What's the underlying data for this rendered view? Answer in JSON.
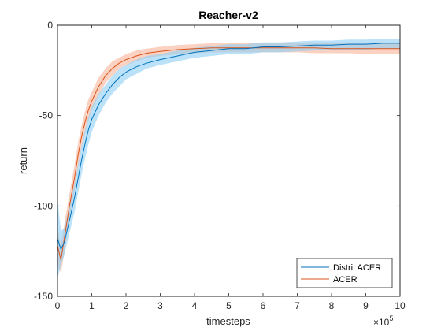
{
  "chart_data": {
    "type": "line",
    "title": "Reacher-v2",
    "xlabel": "timesteps",
    "ylabel": "return",
    "x_multiplier_label": "×10",
    "x_multiplier_exponent": "5",
    "xlim": [
      0,
      10
    ],
    "ylim": [
      -150,
      0
    ],
    "xticks": [
      0,
      1,
      2,
      3,
      4,
      5,
      6,
      7,
      8,
      9,
      10
    ],
    "yticks": [
      0,
      -50,
      -100,
      -150
    ],
    "grid": false,
    "legend_position": "bottom-right",
    "series": [
      {
        "name": "Distri. ACER",
        "color": "#0072BD",
        "band_color": "#8ECFF5",
        "x": [
          0,
          0.1,
          0.2,
          0.35,
          0.5,
          0.6,
          0.7,
          0.8,
          0.9,
          1.0,
          1.2,
          1.4,
          1.6,
          1.8,
          2.0,
          2.3,
          2.6,
          3.0,
          3.5,
          4.0,
          4.5,
          5.0,
          5.5,
          6.0,
          6.5,
          7.0,
          7.5,
          8.0,
          8.5,
          9.0,
          9.5,
          10.0
        ],
        "mean": [
          -118,
          -124,
          -120,
          -108,
          -95,
          -85,
          -75,
          -66,
          -58,
          -52,
          -44,
          -38,
          -33,
          -29,
          -26,
          -23,
          -21,
          -19,
          -17,
          -15,
          -14,
          -13,
          -13,
          -12,
          -12,
          -11.5,
          -11,
          -11,
          -10.5,
          -10.5,
          -10,
          -10
        ],
        "lower": [
          -140,
          -133,
          -127,
          -115,
          -103,
          -93,
          -83,
          -74,
          -66,
          -59,
          -50,
          -43,
          -38,
          -34,
          -30,
          -27,
          -24,
          -22,
          -20,
          -18,
          -17,
          -16,
          -16,
          -15,
          -15,
          -14.5,
          -14,
          -14,
          -13.5,
          -13.5,
          -13,
          -13
        ],
        "upper": [
          -96,
          -114,
          -112,
          -100,
          -87,
          -77,
          -67,
          -58,
          -51,
          -45,
          -38,
          -33,
          -28,
          -24,
          -22,
          -19,
          -17,
          -16,
          -14,
          -12.5,
          -11.5,
          -10.5,
          -10.5,
          -9.5,
          -9.5,
          -9,
          -8.5,
          -8.5,
          -8,
          -8,
          -7.5,
          -7.5
        ]
      },
      {
        "name": "ACER",
        "color": "#D95319",
        "band_color": "#F8B49A",
        "x": [
          0,
          0.1,
          0.2,
          0.35,
          0.5,
          0.6,
          0.7,
          0.8,
          0.9,
          1.0,
          1.2,
          1.4,
          1.6,
          1.8,
          2.0,
          2.3,
          2.6,
          3.0,
          3.5,
          4.0,
          4.5,
          5.0,
          5.5,
          6.0,
          6.5,
          7.0,
          7.5,
          8.0,
          8.5,
          9.0,
          9.5,
          10.0
        ],
        "mean": [
          -122,
          -130,
          -118,
          -100,
          -84,
          -72,
          -62,
          -54,
          -47,
          -42,
          -34,
          -28,
          -24,
          -21,
          -19,
          -17,
          -15.5,
          -14.5,
          -13.5,
          -13,
          -12.5,
          -12.5,
          -12.5,
          -12.5,
          -12.5,
          -12.5,
          -12.5,
          -13,
          -13,
          -13,
          -13,
          -13
        ],
        "lower": [
          -133,
          -137,
          -126,
          -107,
          -91,
          -79,
          -68,
          -60,
          -53,
          -47,
          -39,
          -32,
          -28,
          -24,
          -22,
          -20,
          -18,
          -17,
          -16,
          -15.5,
          -15,
          -15,
          -15,
          -15,
          -15,
          -15,
          -15.5,
          -15.5,
          -15.5,
          -16,
          -16,
          -16
        ],
        "upper": [
          -111,
          -122,
          -110,
          -93,
          -77,
          -65,
          -56,
          -48,
          -41,
          -37,
          -29,
          -24,
          -20,
          -18,
          -16,
          -14,
          -13,
          -12,
          -11,
          -10.5,
          -10,
          -10,
          -10,
          -10,
          -10,
          -10,
          -9.5,
          -9.5,
          -9.5,
          -9.5,
          -9.5,
          -9.5
        ]
      }
    ]
  }
}
